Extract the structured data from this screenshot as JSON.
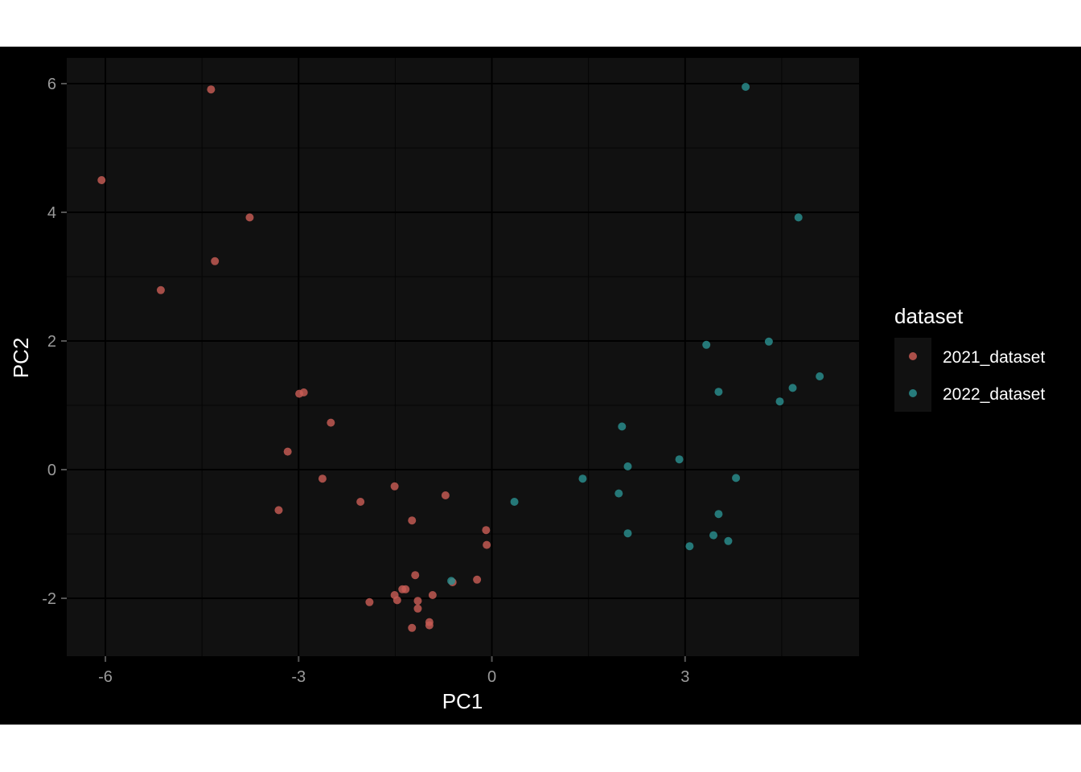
{
  "chart_data": {
    "type": "scatter",
    "title": "",
    "xlabel": "PC1",
    "ylabel": "PC2",
    "xlim": [
      -6.6,
      5.7
    ],
    "ylim": [
      -2.9,
      6.4
    ],
    "x_ticks": [
      -6,
      -3,
      0,
      3
    ],
    "y_ticks": [
      -2,
      0,
      2,
      4,
      6
    ],
    "x_tick_labels": [
      "-6",
      "-3",
      "0",
      "3"
    ],
    "y_tick_labels": [
      "-2",
      "0",
      "2",
      "4",
      "6"
    ],
    "grid": true,
    "legend": {
      "title": "dataset",
      "position": "right"
    },
    "colors": {
      "background": "#000000",
      "panel": "#111111",
      "grid_major": "#000000",
      "grid_minor": "#050505"
    },
    "series": [
      {
        "name": "2021_dataset",
        "color": "#c75b54",
        "points": [
          [
            -6.06,
            4.5
          ],
          [
            -5.14,
            2.79
          ],
          [
            -4.36,
            5.91
          ],
          [
            -4.3,
            3.24
          ],
          [
            -3.76,
            3.92
          ],
          [
            -2.99,
            1.18
          ],
          [
            -2.92,
            1.2
          ],
          [
            -3.17,
            0.28
          ],
          [
            -2.5,
            0.73
          ],
          [
            -2.63,
            -0.14
          ],
          [
            -3.31,
            -0.63
          ],
          [
            -2.04,
            -0.5
          ],
          [
            -1.51,
            -0.26
          ],
          [
            -0.72,
            -0.4
          ],
          [
            -1.24,
            -0.79
          ],
          [
            -0.09,
            -0.94
          ],
          [
            -0.08,
            -1.17
          ],
          [
            -1.19,
            -1.64
          ],
          [
            -0.61,
            -1.75
          ],
          [
            -0.23,
            -1.71
          ],
          [
            -1.34,
            -1.86
          ],
          [
            -1.39,
            -1.86
          ],
          [
            -1.51,
            -1.95
          ],
          [
            -1.47,
            -2.03
          ],
          [
            -1.9,
            -2.06
          ],
          [
            -1.15,
            -2.04
          ],
          [
            -1.15,
            -2.16
          ],
          [
            -0.92,
            -1.95
          ],
          [
            -0.97,
            -2.37
          ],
          [
            -0.97,
            -2.42
          ],
          [
            -1.24,
            -2.46
          ]
        ]
      },
      {
        "name": "2022_dataset",
        "color": "#2a8f8f",
        "points": [
          [
            3.94,
            5.95
          ],
          [
            4.76,
            3.92
          ],
          [
            3.33,
            1.94
          ],
          [
            4.3,
            1.99
          ],
          [
            5.09,
            1.45
          ],
          [
            4.67,
            1.27
          ],
          [
            3.52,
            1.21
          ],
          [
            4.47,
            1.06
          ],
          [
            2.02,
            0.67
          ],
          [
            2.11,
            0.05
          ],
          [
            2.91,
            0.16
          ],
          [
            3.79,
            -0.13
          ],
          [
            1.41,
            -0.14
          ],
          [
            1.97,
            -0.37
          ],
          [
            0.35,
            -0.5
          ],
          [
            3.52,
            -0.69
          ],
          [
            2.11,
            -0.99
          ],
          [
            3.44,
            -1.02
          ],
          [
            3.67,
            -1.11
          ],
          [
            3.07,
            -1.19
          ],
          [
            -0.63,
            -1.73
          ]
        ]
      }
    ]
  }
}
